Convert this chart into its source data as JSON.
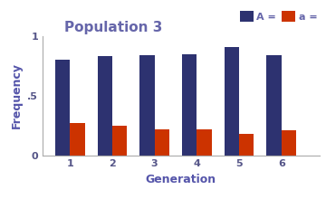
{
  "title": "Population 3",
  "xlabel": "Generation",
  "ylabel": "Frequency",
  "categories": [
    1,
    2,
    3,
    4,
    5,
    6
  ],
  "A_values": [
    0.8,
    0.83,
    0.84,
    0.845,
    0.905,
    0.84
  ],
  "a_values": [
    0.27,
    0.25,
    0.22,
    0.22,
    0.18,
    0.21
  ],
  "A_color": "#2d3270",
  "a_color": "#cc3300",
  "title_color": "#6666aa",
  "axis_label_color": "#5555aa",
  "tick_label_color": "#555588",
  "legend_A_label": "A =",
  "legend_a_label": "a =",
  "ylim": [
    0,
    1
  ],
  "ytick_labels": [
    "0",
    ".5",
    "1"
  ],
  "bar_width": 0.35,
  "background_color": "#ffffff"
}
